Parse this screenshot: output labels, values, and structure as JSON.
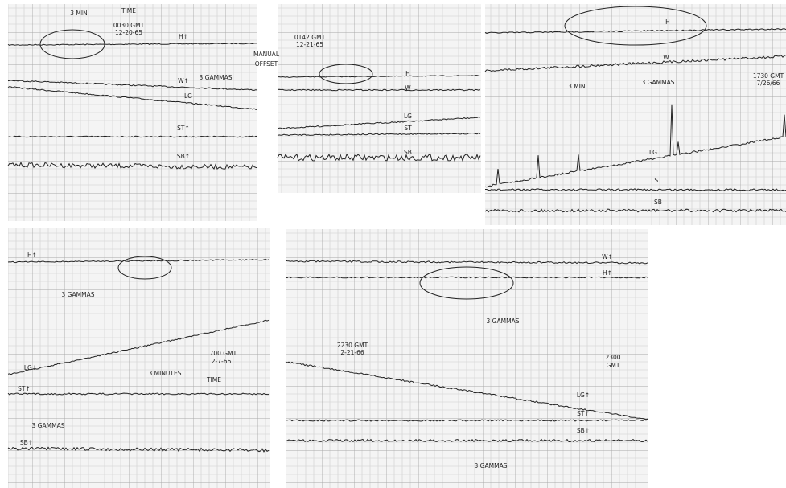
{
  "panels": [
    {
      "labels": [
        "3 MIN",
        "TIME",
        "0030 GMT",
        "12-20-65",
        "H↑",
        "W↑",
        "3 GAMMAS",
        "LG",
        "ST↑",
        "SB↑"
      ]
    },
    {
      "labels": [
        "0142 GMT",
        "12-21-65",
        "H",
        "W",
        "LG",
        "ST",
        "SB"
      ]
    },
    {
      "labels": [
        "H",
        "W",
        "3 MIN.",
        "3 GAMMAS",
        "1730 GMT",
        "7/26/66",
        "LG",
        "ST",
        "SB"
      ]
    },
    {
      "labels": [
        "H↑",
        "3 GAMMAS",
        "1700 GMT",
        "2-7-66",
        "3 MINUTES",
        "TIME",
        "LG↓",
        "ST↑",
        "3 GAMMAS",
        "SB↑"
      ]
    },
    {
      "labels": [
        "W↑",
        "H↑",
        "3 GAMMAS",
        "2230 GMT",
        "2-21-66",
        "2300",
        "GMT",
        "LG↑",
        "ST↑",
        "SB↑",
        "3 GAMMAS"
      ]
    }
  ],
  "offset_label": [
    "MANUAL",
    "OFFSET"
  ]
}
